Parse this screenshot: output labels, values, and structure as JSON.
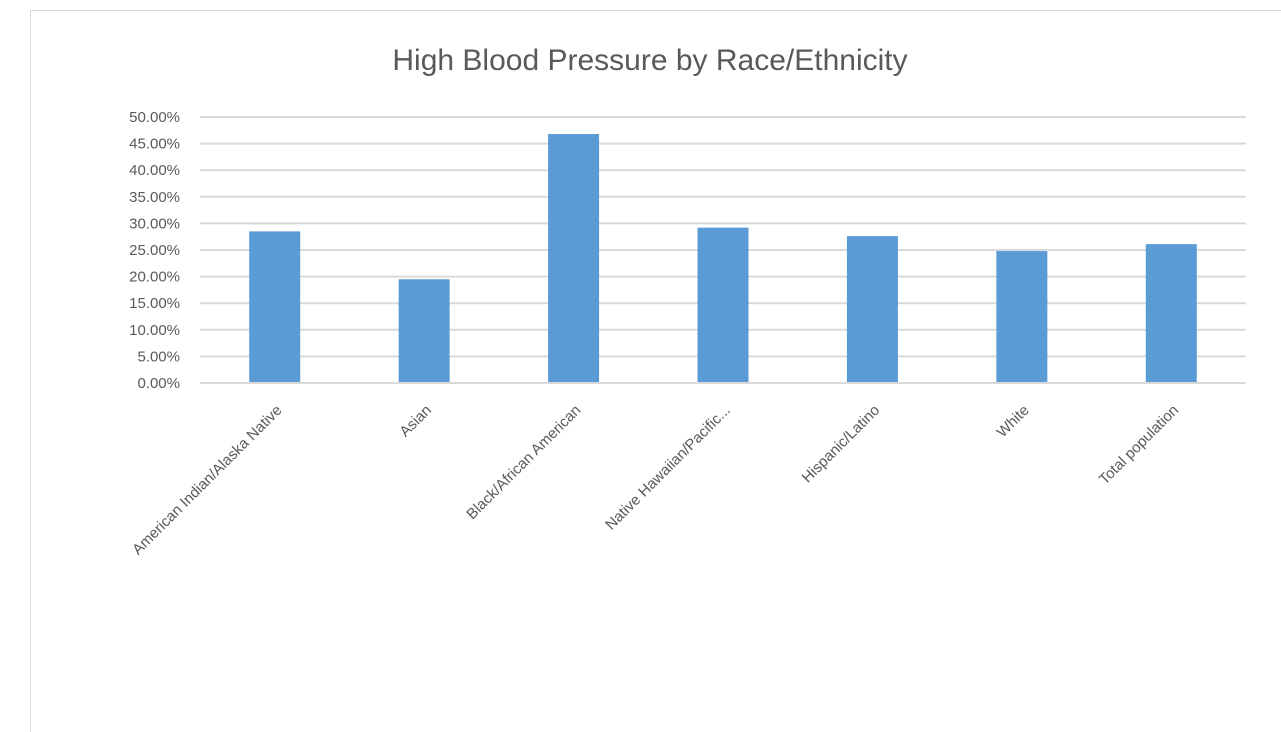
{
  "chart_data": {
    "type": "bar",
    "title": "High Blood Pressure by Race/Ethnicity",
    "xlabel": "",
    "ylabel": "",
    "categories": [
      "American Indian/Alaska Native",
      "Asian",
      "Black/African American",
      "Native Hawaiian/Pacific...",
      "Hispanic/Latino",
      "White",
      "Total population"
    ],
    "values": [
      28.5,
      19.5,
      46.8,
      29.2,
      27.6,
      24.8,
      26.1
    ],
    "y_ticks": [
      "0.00%",
      "5.00%",
      "10.00%",
      "15.00%",
      "20.00%",
      "25.00%",
      "30.00%",
      "35.00%",
      "40.00%",
      "45.00%",
      "50.00%"
    ],
    "ylim": [
      0,
      50
    ],
    "grid": true,
    "legend": "none",
    "bar_color": "#5b9bd5",
    "grid_color": "#d9d9d9"
  }
}
